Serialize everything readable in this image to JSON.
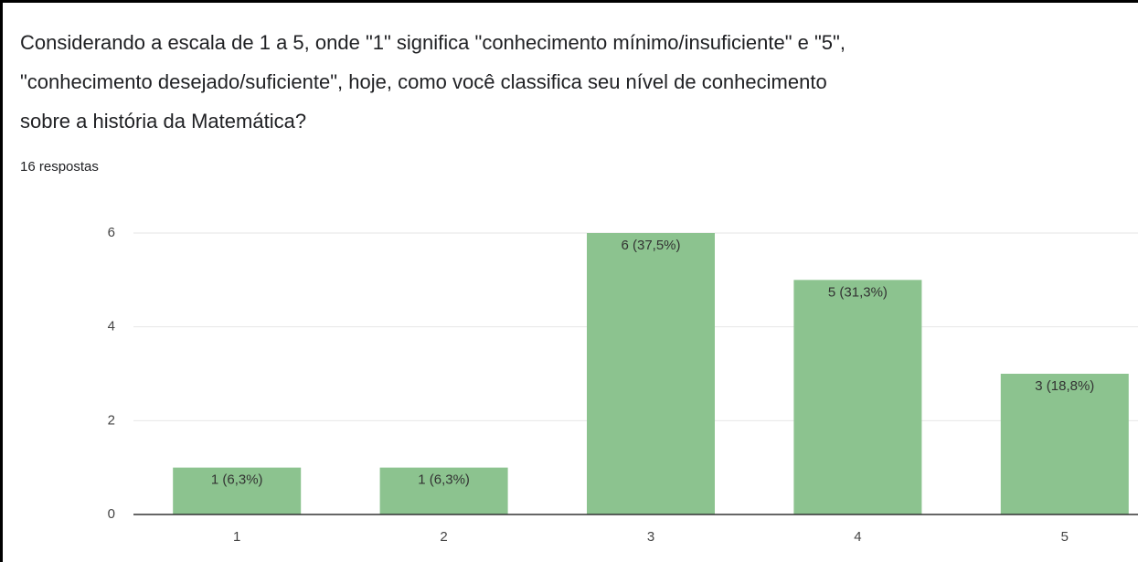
{
  "chart_data": {
    "type": "bar",
    "title": [
      "Considerando a escala de 1 a 5, onde \"1\" significa \"conhecimento mínimo/insuficiente\" e \"5\",",
      "\"conhecimento desejado/suficiente\", hoje, como você classifica seu nível de conhecimento",
      "sobre a história da Matemática?"
    ],
    "subtitle": "16 respostas",
    "categories": [
      "1",
      "2",
      "3",
      "4",
      "5"
    ],
    "values": [
      1,
      1,
      6,
      5,
      3
    ],
    "value_labels": [
      "1 (6,3%)",
      "1 (6,3%)",
      "6 (37,5%)",
      "5 (31,3%)",
      "3 (18,8%)"
    ],
    "color": "#8cc38f",
    "ylim": [
      0,
      6
    ],
    "yticks": [
      0,
      2,
      4,
      6
    ],
    "grid": true
  }
}
